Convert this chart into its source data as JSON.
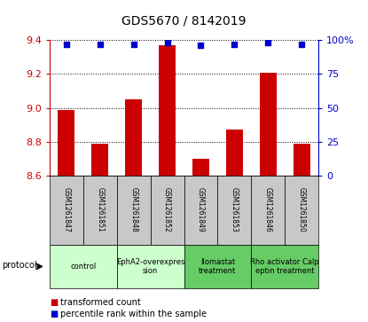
{
  "title": "GDS5670 / 8142019",
  "samples": [
    "GSM1261847",
    "GSM1261851",
    "GSM1261848",
    "GSM1261852",
    "GSM1261849",
    "GSM1261853",
    "GSM1261846",
    "GSM1261850"
  ],
  "transformed_counts": [
    8.99,
    8.79,
    9.05,
    9.37,
    8.7,
    8.87,
    9.21,
    8.79
  ],
  "percentile_ranks": [
    97,
    97,
    97,
    98,
    96,
    97,
    98,
    97
  ],
  "ylim_left": [
    8.6,
    9.4
  ],
  "ylim_right": [
    0,
    100
  ],
  "yticks_left": [
    8.6,
    8.8,
    9.0,
    9.2,
    9.4
  ],
  "yticks_right": [
    0,
    25,
    50,
    75,
    100
  ],
  "ytick_right_labels": [
    "0",
    "25",
    "50",
    "75",
    "100%"
  ],
  "bar_color": "#cc0000",
  "dot_color": "#0000cc",
  "bar_width": 0.5,
  "protocols": [
    {
      "label": "control",
      "span": [
        0,
        1
      ],
      "color": "#ccffcc"
    },
    {
      "label": "EphA2-overexpres\nsion",
      "span": [
        2,
        3
      ],
      "color": "#ccffcc"
    },
    {
      "label": "Ilomastat\ntreatment",
      "span": [
        4,
        5
      ],
      "color": "#66cc66"
    },
    {
      "label": "Rho activator Calp\neptin treatment",
      "span": [
        6,
        7
      ],
      "color": "#66cc66"
    }
  ],
  "legend_bar_label": "transformed count",
  "legend_dot_label": "percentile rank within the sample",
  "protocol_label": "protocol",
  "tick_color_left": "#cc0000",
  "tick_color_right": "#0000cc",
  "sample_bg_color": "#c8c8c8",
  "plot_bg": "#ffffff"
}
